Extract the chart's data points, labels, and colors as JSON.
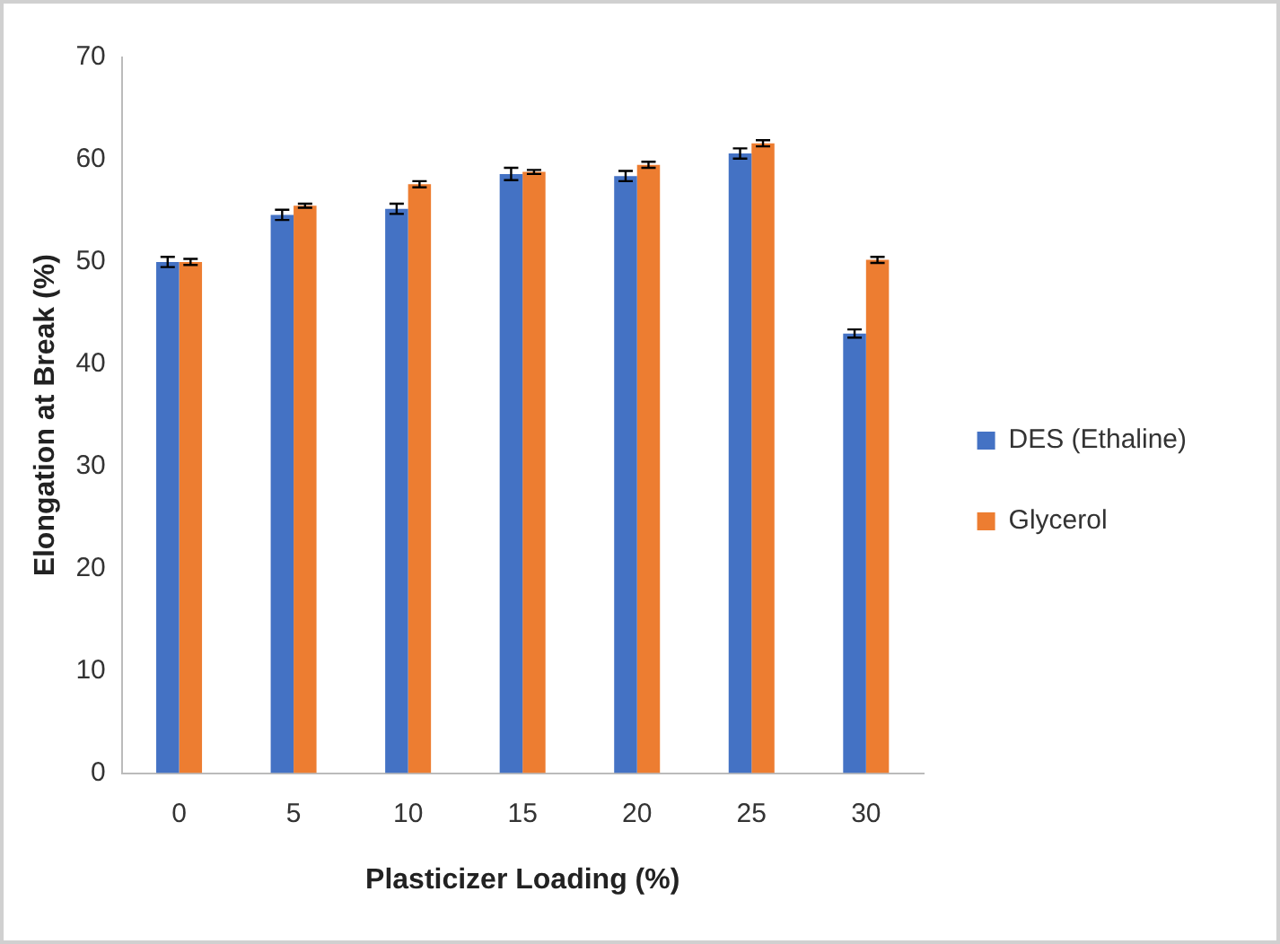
{
  "chart_data": {
    "type": "bar",
    "xlabel": "Plasticizer Loading (%)",
    "ylabel": "Elongation at Break (%)",
    "categories": [
      "0",
      "5",
      "10",
      "15",
      "20",
      "25",
      "30"
    ],
    "series": [
      {
        "name": "DES (Ethaline)",
        "color": "#4472c4",
        "values": [
          50,
          54.6,
          55.2,
          58.6,
          58.4,
          60.6,
          43
        ],
        "errors": [
          0.5,
          0.5,
          0.5,
          0.6,
          0.5,
          0.5,
          0.4
        ]
      },
      {
        "name": "Glycerol",
        "color": "#ed7d31",
        "values": [
          50,
          55.5,
          57.6,
          58.8,
          59.5,
          61.6,
          50.2
        ],
        "errors": [
          0.3,
          0.2,
          0.3,
          0.2,
          0.3,
          0.3,
          0.3
        ]
      }
    ],
    "ylim": [
      0,
      70
    ],
    "yticks": [
      0,
      10,
      20,
      30,
      40,
      50,
      60,
      70
    ],
    "grid": false,
    "legend": "right"
  }
}
